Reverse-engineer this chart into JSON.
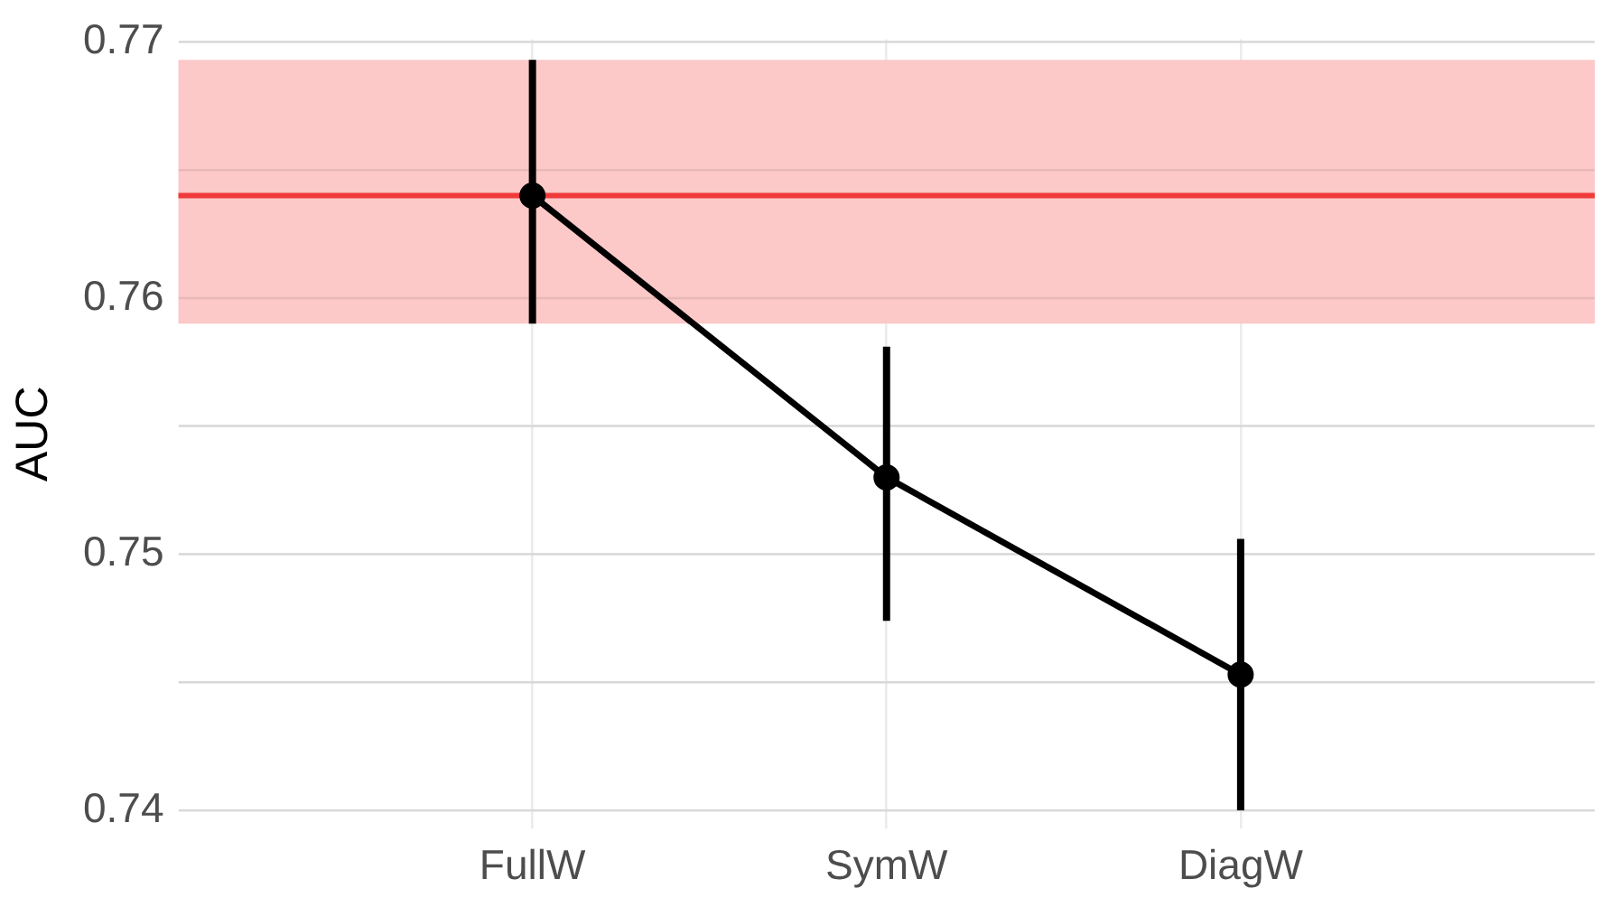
{
  "chart_data": {
    "type": "line",
    "ylabel": "AUC",
    "categories": [
      null,
      "FullW",
      "SymW",
      "DiagW",
      null
    ],
    "series": [
      {
        "color": "#000000",
        "values": [
          null,
          0.764,
          0.753,
          0.7453,
          null
        ],
        "errors": [
          null,
          [
            0.759,
            0.7693
          ],
          [
            0.7474,
            0.7581
          ],
          [
            0.74,
            0.7506
          ],
          null
        ]
      }
    ],
    "ylim": [
      0.7393,
      0.7701
    ],
    "yticks": [
      0.74,
      {
        "value": 0.745,
        "label": null
      },
      0.75,
      {
        "value": 0.755,
        "label": null
      },
      0.76,
      {
        "value": 0.765,
        "label": null
      },
      0.77
    ],
    "ref_lines": [
      {
        "axis": "y",
        "value": 0.764,
        "color": "#f03b3b"
      }
    ],
    "bands": [
      {
        "axis": "y",
        "from": 0.759,
        "to": 0.7693,
        "color": "#fcc8c8"
      }
    ],
    "grid": true,
    "marker": "circle",
    "line_style": "solid",
    "legend": false
  }
}
